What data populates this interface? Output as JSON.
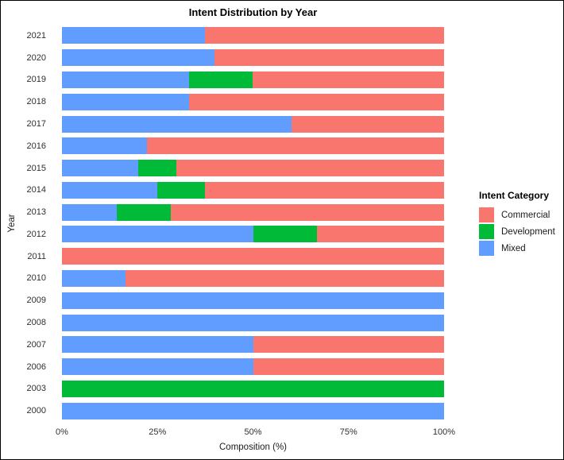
{
  "title": "Intent Distribution by Year",
  "axes": {
    "x_label": "Composition (%)",
    "y_label": "Year",
    "x_ticks": [
      {
        "label": "0%",
        "value": 0
      },
      {
        "label": "25%",
        "value": 25
      },
      {
        "label": "50%",
        "value": 50
      },
      {
        "label": "75%",
        "value": 75
      },
      {
        "label": "100%",
        "value": 100
      }
    ]
  },
  "legend": {
    "title": "Intent Category",
    "items": [
      {
        "label": "Commercial",
        "color": "#F8766D"
      },
      {
        "label": "Development",
        "color": "#00BA38"
      },
      {
        "label": "Mixed",
        "color": "#619CFF"
      }
    ]
  },
  "chart_data": {
    "type": "bar",
    "orientation": "horizontal",
    "stacked": true,
    "title": "Intent Distribution by Year",
    "xlabel": "Composition (%)",
    "ylabel": "Year",
    "xlim": [
      0,
      100
    ],
    "x_tick_labels": [
      "0%",
      "25%",
      "50%",
      "75%",
      "100%"
    ],
    "grid": false,
    "legend_title": "Intent Category",
    "legend_position": "right",
    "stack_order_left_to_right": [
      "Mixed",
      "Development",
      "Commercial"
    ],
    "categories": [
      "2021",
      "2020",
      "2019",
      "2018",
      "2017",
      "2016",
      "2015",
      "2014",
      "2013",
      "2012",
      "2011",
      "2010",
      "2009",
      "2008",
      "2007",
      "2006",
      "2003",
      "2000"
    ],
    "series": [
      {
        "name": "Mixed",
        "color": "#619CFF",
        "values": [
          37.5,
          40,
          33.33,
          33.33,
          60,
          22.22,
          20,
          25,
          14.29,
          50,
          0,
          16.67,
          100,
          100,
          50,
          50,
          0,
          100
        ]
      },
      {
        "name": "Development",
        "color": "#00BA38",
        "values": [
          0,
          0,
          16.67,
          0,
          0,
          0,
          10,
          12.5,
          14.29,
          16.67,
          0,
          0,
          0,
          0,
          0,
          0,
          100,
          0
        ]
      },
      {
        "name": "Commercial",
        "color": "#F8766D",
        "values": [
          62.5,
          60,
          50,
          66.67,
          40,
          77.78,
          70,
          62.5,
          71.42,
          33.33,
          100,
          83.33,
          0,
          0,
          50,
          50,
          0,
          0
        ]
      }
    ]
  }
}
